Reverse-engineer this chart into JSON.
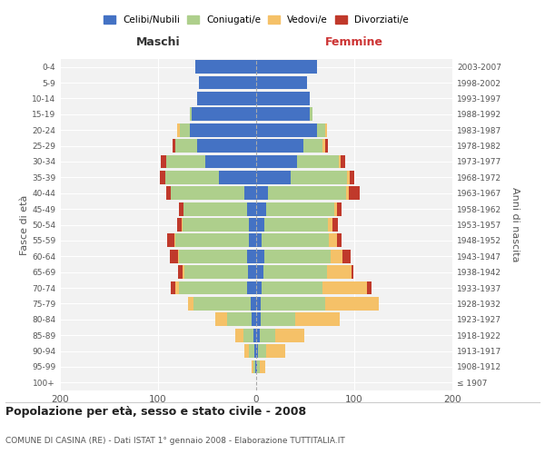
{
  "age_groups": [
    "100+",
    "95-99",
    "90-94",
    "85-89",
    "80-84",
    "75-79",
    "70-74",
    "65-69",
    "60-64",
    "55-59",
    "50-54",
    "45-49",
    "40-44",
    "35-39",
    "30-34",
    "25-29",
    "20-24",
    "15-19",
    "10-14",
    "5-9",
    "0-4"
  ],
  "birth_years": [
    "≤ 1907",
    "1908-1912",
    "1913-1917",
    "1918-1922",
    "1923-1927",
    "1928-1932",
    "1933-1937",
    "1938-1942",
    "1943-1947",
    "1948-1952",
    "1953-1957",
    "1958-1962",
    "1963-1967",
    "1968-1972",
    "1973-1977",
    "1978-1982",
    "1983-1987",
    "1988-1992",
    "1993-1997",
    "1998-2002",
    "2003-2007"
  ],
  "maschi": {
    "celibi": [
      0,
      1,
      2,
      3,
      5,
      6,
      9,
      8,
      9,
      7,
      7,
      9,
      12,
      38,
      52,
      60,
      68,
      66,
      60,
      58,
      62
    ],
    "coniugati": [
      0,
      2,
      5,
      10,
      25,
      58,
      70,
      65,
      70,
      75,
      68,
      65,
      75,
      55,
      40,
      22,
      10,
      2,
      0,
      0,
      0
    ],
    "vedovi": [
      0,
      2,
      5,
      8,
      12,
      5,
      3,
      2,
      1,
      1,
      1,
      0,
      0,
      0,
      0,
      0,
      3,
      0,
      0,
      0,
      0
    ],
    "divorziati": [
      0,
      0,
      0,
      0,
      0,
      0,
      5,
      5,
      8,
      8,
      5,
      5,
      5,
      5,
      5,
      3,
      0,
      0,
      0,
      0,
      0
    ]
  },
  "femmine": {
    "nubili": [
      0,
      1,
      2,
      4,
      5,
      5,
      6,
      7,
      8,
      6,
      8,
      10,
      12,
      35,
      42,
      48,
      62,
      55,
      55,
      52,
      62
    ],
    "coniugate": [
      0,
      3,
      8,
      15,
      35,
      65,
      62,
      65,
      68,
      68,
      65,
      70,
      80,
      58,
      42,
      20,
      8,
      2,
      0,
      0,
      0
    ],
    "vedove": [
      0,
      5,
      20,
      30,
      45,
      55,
      45,
      25,
      12,
      8,
      5,
      2,
      2,
      2,
      2,
      2,
      2,
      0,
      0,
      0,
      0
    ],
    "divorziate": [
      0,
      0,
      0,
      0,
      0,
      0,
      5,
      2,
      8,
      5,
      5,
      5,
      12,
      5,
      5,
      3,
      0,
      0,
      0,
      0,
      0
    ]
  },
  "colors": {
    "celibi": "#4472C4",
    "coniugati": "#AECF8C",
    "vedovi": "#F5C168",
    "divorziati": "#C0392B"
  },
  "xlim": 200,
  "title": "Popolazione per età, sesso e stato civile - 2008",
  "subtitle": "COMUNE DI CASINA (RE) - Dati ISTAT 1° gennaio 2008 - Elaborazione TUTTITALIA.IT",
  "ylabel_left": "Fasce di età",
  "ylabel_right": "Anni di nascita",
  "xlabel_maschi": "Maschi",
  "xlabel_femmine": "Femmine",
  "legend_labels": [
    "Celibi/Nubili",
    "Coniugati/e",
    "Vedovi/e",
    "Divorziati/e"
  ],
  "background_color": "#FFFFFF",
  "plot_bg": "#F2F2F2"
}
